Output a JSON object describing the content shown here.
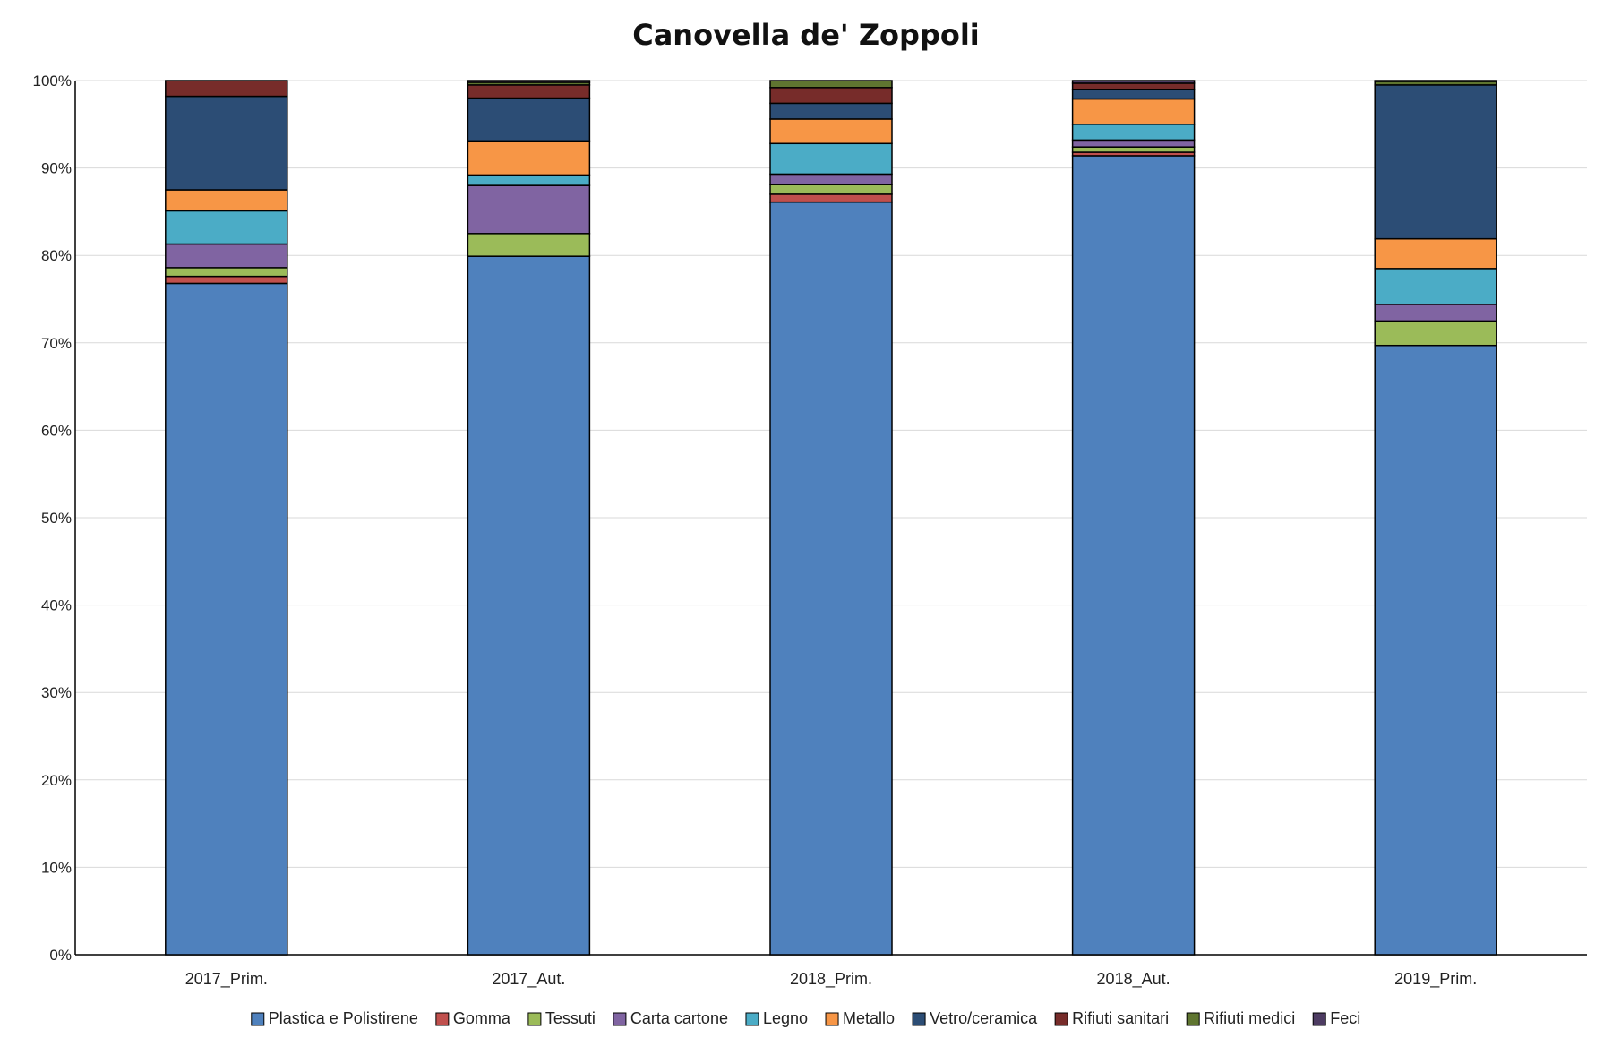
{
  "chart_data": {
    "type": "bar",
    "stacked": true,
    "percent": true,
    "title": "Canovella de' Zoppoli",
    "xlabel": "",
    "ylabel": "",
    "ylim": [
      0,
      100
    ],
    "yticks": [
      "0%",
      "10%",
      "20%",
      "30%",
      "40%",
      "50%",
      "60%",
      "70%",
      "80%",
      "90%",
      "100%"
    ],
    "grid": true,
    "legend": "bottom",
    "categories": [
      "2017_Prim.",
      "2017_Aut.",
      "2018_Prim.",
      "2018_Aut.",
      "2019_Prim."
    ],
    "series": [
      {
        "name": "Plastica e Polistirene",
        "color": "#4F81BD",
        "values": [
          76.8,
          79.9,
          86.1,
          91.4,
          69.7
        ]
      },
      {
        "name": "Gomma",
        "color": "#C0504D",
        "values": [
          0.8,
          0.0,
          0.9,
          0.4,
          0.0
        ]
      },
      {
        "name": "Tessuti",
        "color": "#9BBB59",
        "values": [
          1.0,
          2.6,
          1.1,
          0.6,
          2.8
        ]
      },
      {
        "name": "Carta cartone",
        "color": "#8064A2",
        "values": [
          2.7,
          5.5,
          1.2,
          0.8,
          1.9
        ]
      },
      {
        "name": "Legno",
        "color": "#4BACC6",
        "values": [
          3.8,
          1.2,
          3.5,
          1.8,
          4.1
        ]
      },
      {
        "name": "Metallo",
        "color": "#F79646",
        "values": [
          2.4,
          3.9,
          2.8,
          2.9,
          3.4
        ]
      },
      {
        "name": "Vetro/ceramica",
        "color": "#2C4D75",
        "values": [
          10.7,
          4.9,
          1.8,
          1.1,
          17.6
        ]
      },
      {
        "name": "Rifiuti sanitari",
        "color": "#772C2A",
        "values": [
          1.8,
          1.5,
          1.8,
          0.7,
          0.0
        ]
      },
      {
        "name": "Rifiuti medici",
        "color": "#5F7530",
        "values": [
          0.0,
          0.3,
          0.8,
          0.0,
          0.4
        ]
      },
      {
        "name": "Feci",
        "color": "#4D3B62",
        "values": [
          0.0,
          0.2,
          0.0,
          0.3,
          0.1
        ]
      }
    ]
  }
}
